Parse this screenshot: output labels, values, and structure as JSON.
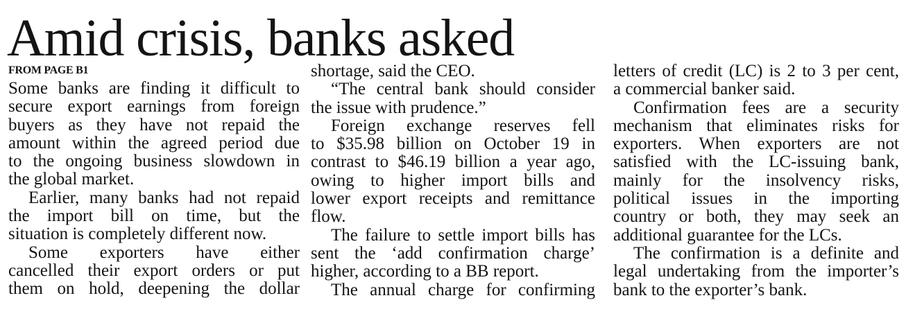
{
  "headline": "Amid crisis, banks asked",
  "kicker": "FROM PAGE B1",
  "columns": [
    {
      "paragraphs": [
        {
          "lines": [
            "Some banks are finding it difficult to",
            "secure export earnings from foreign",
            "buyers as they have not repaid the",
            "amount within the agreed period due",
            "to the ongoing business slowdown in",
            "the global market."
          ]
        },
        {
          "lines": [
            "Earlier, many banks had not repaid",
            "the import bill on time, but the",
            "situation is completely different now."
          ]
        },
        {
          "lines": [
            "Some exporters have either",
            "cancelled their export orders or put",
            "them on hold, deepening the dollar"
          ],
          "continues": true
        }
      ]
    },
    {
      "paragraphs": [
        {
          "lines": [
            "shortage, said the CEO."
          ]
        },
        {
          "lines": [
            "“The central bank should consider",
            "the issue with prudence.”"
          ]
        },
        {
          "lines": [
            "Foreign exchange reserves fell",
            "to $35.98 billion on October 19 in",
            "contrast to $46.19 billion a year ago,",
            "owing to higher import bills and",
            "lower export receipts and remittance",
            "flow."
          ]
        },
        {
          "lines": [
            "The failure to settle import bills has",
            "sent the ‘add confirmation charge’",
            "higher, according to a BB report."
          ]
        },
        {
          "lines": [
            "The annual charge for confirming"
          ],
          "continues": true
        }
      ]
    },
    {
      "paragraphs": [
        {
          "lines": [
            "letters of credit (LC) is 2 to 3 per cent,",
            "a commercial banker said."
          ]
        },
        {
          "lines": [
            "Confirmation fees are a security",
            "mechanism that eliminates risks for",
            "exporters. When exporters are not",
            "satisfied with the LC-issuing bank,",
            "mainly for the insolvency risks,",
            "political issues in the importing",
            "country or both, they may seek an",
            "additional guarantee for the LCs."
          ]
        },
        {
          "lines": [
            "The confirmation is a definite and",
            "legal undertaking from the importer’s",
            "bank to the exporter’s bank."
          ]
        }
      ]
    }
  ]
}
